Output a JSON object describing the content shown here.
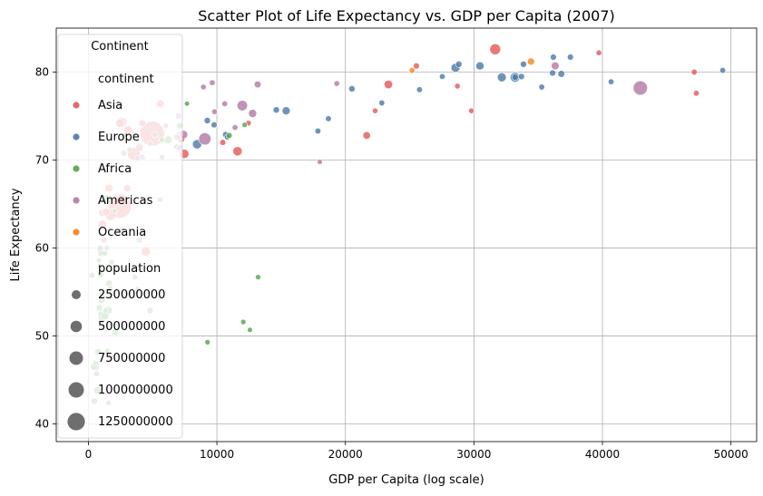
{
  "chart_data": {
    "type": "scatter",
    "title": "Scatter Plot of Life Expectancy vs. GDP per Capita (2007)",
    "xlabel": "GDP per Capita (log scale)",
    "ylabel": "Life Expectancy",
    "xlim": [
      -2500,
      52000
    ],
    "ylim": [
      38,
      85
    ],
    "xticks": [
      0,
      10000,
      20000,
      30000,
      40000,
      50000
    ],
    "yticks": [
      40,
      50,
      60,
      70,
      80
    ],
    "xtick_labels": [
      "0",
      "10000",
      "20000",
      "30000",
      "40000",
      "50000"
    ],
    "ytick_labels": [
      "40",
      "50",
      "60",
      "70",
      "80"
    ],
    "grid": true,
    "legend": {
      "placement": "top-left",
      "title": "Continent",
      "hue_title": "continent",
      "size_title": "population",
      "size_entries": [
        {
          "label": "250000000",
          "value": 250000000
        },
        {
          "label": "500000000",
          "value": 500000000
        },
        {
          "label": "750000000",
          "value": 750000000
        },
        {
          "label": "1000000000",
          "value": 1000000000
        },
        {
          "label": "1250000000",
          "value": 1250000000
        }
      ]
    },
    "series": [
      {
        "name": "Asia",
        "color": "#e45756",
        "points": [
          [
            4959,
            73,
            1318
          ],
          [
            2452,
            64.7,
            1110
          ],
          [
            3541,
            70.7,
            224
          ],
          [
            2605,
            74.3,
            85
          ],
          [
            3095,
            73.4,
            64
          ],
          [
            2441,
            74.2,
            48
          ],
          [
            3970,
            71.4,
            24
          ],
          [
            4471,
            59.6,
            70
          ],
          [
            1713,
            63.8,
            160
          ],
          [
            2606,
            65.5,
            150
          ],
          [
            1091,
            62.7,
            49
          ],
          [
            1593,
            66.8,
            32
          ],
          [
            944,
            59.7,
            20
          ],
          [
            1044,
            64,
            14
          ],
          [
            1391,
            64.1,
            29
          ],
          [
            3020,
            66.8,
            23
          ],
          [
            4185,
            74.2,
            18
          ],
          [
            7458,
            70.7,
            71
          ],
          [
            5600,
            76.4,
            30
          ],
          [
            7200,
            72.4,
            28
          ],
          [
            10461,
            72.0,
            6
          ],
          [
            11606,
            71.0,
            70
          ],
          [
            12452,
            74.2,
            3
          ],
          [
            21655,
            72.8,
            28
          ],
          [
            22316,
            75.6,
            2.5
          ],
          [
            23348,
            78.6,
            48
          ],
          [
            25523,
            80.7,
            7
          ],
          [
            28718,
            78.4,
            3
          ],
          [
            29796,
            75.6,
            2.5
          ],
          [
            31656,
            82.6,
            127
          ],
          [
            39725,
            82.2,
            3
          ],
          [
            47143,
            80.0,
            4.5
          ],
          [
            47306,
            77.6,
            4.5
          ]
        ]
      },
      {
        "name": "Europe",
        "color": "#4c78a8",
        "points": [
          [
            8460,
            71.8,
            70
          ],
          [
            9253,
            74.5,
            10
          ],
          [
            9786,
            74.0,
            7
          ],
          [
            10681,
            72.9,
            7
          ],
          [
            10808,
            72.6,
            3
          ],
          [
            14619,
            75.7,
            10
          ],
          [
            15390,
            75.6,
            38
          ],
          [
            17858,
            73.3,
            5
          ],
          [
            18679,
            74.7,
            5
          ],
          [
            20510,
            78.1,
            10
          ],
          [
            22833,
            76.5,
            5
          ],
          [
            25768,
            78.0,
            5
          ],
          [
            27538,
            79.5,
            4
          ],
          [
            28570,
            80.5,
            59
          ],
          [
            28821,
            80.9,
            10
          ],
          [
            30470,
            80.7,
            40
          ],
          [
            32170,
            79.4,
            60
          ],
          [
            33203,
            79.4,
            82
          ],
          [
            33207,
            79.4,
            10
          ],
          [
            33692,
            79.5,
            8
          ],
          [
            33860,
            80.9,
            9
          ],
          [
            35278,
            78.3,
            5
          ],
          [
            36126,
            79.9,
            8
          ],
          [
            36181,
            81.7,
            7
          ],
          [
            36798,
            79.8,
            16
          ],
          [
            37506,
            81.7,
            7
          ],
          [
            40676,
            78.9,
            4
          ],
          [
            49357,
            80.2,
            4.6
          ]
        ]
      },
      {
        "name": "Africa",
        "color": "#54a24b",
        "points": [
          [
            9270,
            49.3,
            1.7
          ],
          [
            12057,
            51.6,
            1.5
          ],
          [
            12570,
            50.7,
            0.7
          ],
          [
            13206,
            56.7,
            1.3
          ],
          [
            10956,
            72.8,
            6
          ],
          [
            12154,
            74.0,
            1.2
          ],
          [
            7670,
            76.4,
            0.5
          ],
          [
            7093,
            73.9,
            6.5
          ],
          [
            6223,
            72.3,
            33
          ],
          [
            5728,
            72.3,
            4
          ],
          [
            6870,
            71.5,
            3
          ],
          [
            7092,
            73.0,
            1
          ],
          [
            4797,
            52.9,
            10
          ],
          [
            3820,
            55.3,
            3
          ],
          [
            2602,
            62.1,
            2
          ],
          [
            1441,
            65.5,
            80
          ],
          [
            1545,
            52.9,
            42
          ],
          [
            1107,
            52.2,
            77
          ],
          [
            986,
            52.5,
            8
          ],
          [
            2082,
            50.4,
            12
          ],
          [
            926,
            60.0,
            10
          ],
          [
            1463,
            48.3,
            1
          ],
          [
            863,
            53.2,
            12
          ],
          [
            1803,
            58.4,
            2
          ],
          [
            619,
            46.4,
            7
          ],
          [
            415,
            46.5,
            13
          ],
          [
            1598,
            56.0,
            13
          ],
          [
            706,
            43.8,
            20
          ],
          [
            1270,
            52.3,
            40
          ],
          [
            1044,
            54.1,
            13
          ],
          [
            579,
            46.9,
            4
          ],
          [
            986,
            59.4,
            10
          ],
          [
            943,
            57.0,
            14
          ],
          [
            1271,
            59.4,
            5
          ],
          [
            823,
            58.6,
            1.5
          ],
          [
            470,
            42.6,
            9
          ],
          [
            1712,
            55.4,
            4
          ],
          [
            641,
            45.7,
            5
          ],
          [
            759,
            48.2,
            10
          ],
          [
            2042,
            64.2,
            2
          ],
          [
            1327,
            52.9,
            1
          ],
          [
            1569,
            42.4,
            1.2
          ],
          [
            3632,
            56.7,
            1.2
          ],
          [
            277,
            56.9,
            5
          ],
          [
            1107,
            54.5,
            1
          ],
          [
            882,
            58.0,
            1
          ],
          [
            1057,
            54.8,
            1
          ],
          [
            1441,
            60.0,
            1
          ],
          [
            2749,
            72.8,
            1
          ],
          [
            3193,
            71.2,
            1
          ]
        ]
      },
      {
        "name": "Americas",
        "color": "#b279a2",
        "points": [
          [
            9065,
            72.4,
            190
          ],
          [
            42952,
            78.2,
            301
          ],
          [
            36319,
            80.7,
            33
          ],
          [
            11977,
            76.2,
            108
          ],
          [
            12779,
            75.3,
            40
          ],
          [
            9645,
            78.8,
            4
          ],
          [
            8948,
            78.3,
            4
          ],
          [
            9809,
            75.5,
            3
          ],
          [
            10611,
            76.4,
            4
          ],
          [
            13172,
            78.6,
            16
          ],
          [
            11416,
            73.7,
            4
          ],
          [
            18009,
            69.8,
            1
          ],
          [
            19329,
            78.7,
            4
          ],
          [
            7408,
            72.9,
            44
          ],
          [
            7008,
            75.0,
            7
          ],
          [
            6025,
            73.9,
            3
          ],
          [
            5728,
            70.3,
            3
          ],
          [
            7107,
            71.4,
            10
          ],
          [
            3548,
            73.0,
            6.5
          ],
          [
            5186,
            72.9,
            9
          ],
          [
            6873,
            72.6,
            7
          ],
          [
            4172,
            70.3,
            9
          ],
          [
            3822,
            70.2,
            5.7
          ],
          [
            2749,
            70.8,
            5.7
          ],
          [
            3970,
            60.9,
            8.5
          ],
          [
            5581,
            65.5,
            2
          ],
          [
            1202,
            60.9,
            8.5
          ],
          [
            4797,
            71.9,
            1
          ]
        ]
      },
      {
        "name": "Oceania",
        "color": "#f58518",
        "points": [
          [
            34435,
            81.2,
            20
          ],
          [
            25185,
            80.2,
            4
          ]
        ]
      }
    ]
  }
}
